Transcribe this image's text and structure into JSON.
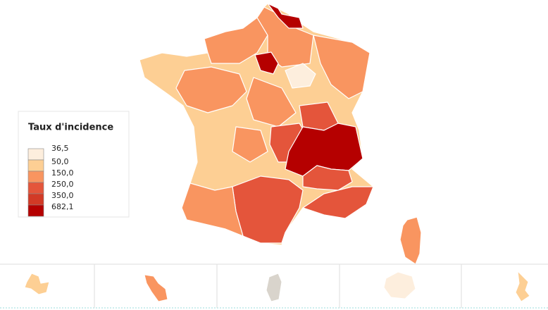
{
  "legend": {
    "title": "Taux d'incidence",
    "items": [
      {
        "label": "36,5",
        "color": "#fdeedd"
      },
      {
        "label": "50,0",
        "color": "#fdcf94"
      },
      {
        "label": "150,0",
        "color": "#f99560"
      },
      {
        "label": "250,0",
        "color": "#e4553b"
      },
      {
        "label": "350,0",
        "color": "#d23a26"
      },
      {
        "label": "682,1",
        "color": "#b50000"
      }
    ]
  }
}
